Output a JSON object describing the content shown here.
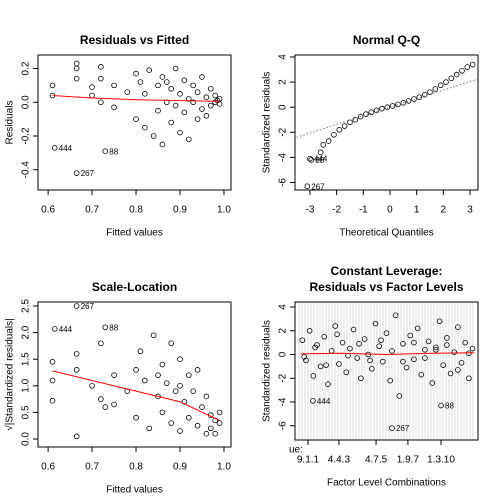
{
  "chart_data": [
    {
      "type": "scatter",
      "title": "Residuals vs Fitted",
      "x_label": "Fitted values",
      "y_label": "Residuals",
      "xlim": [
        0.577,
        1.016
      ],
      "ylim": [
        -0.52,
        0.28
      ],
      "xticks": [
        0.6,
        0.7,
        0.8,
        0.9,
        {
          "value": 1,
          "label": "1.0"
        }
      ],
      "yticks": [
        -0.4,
        -0.2,
        {
          "value": 0,
          "label": "0.0"
        },
        0.2
      ],
      "series": [
        {
          "style": "points",
          "color": "#000000",
          "x": [
            0.61,
            0.61,
            0.615,
            0.665,
            0.665,
            0.665,
            0.665,
            0.7,
            0.7,
            0.72,
            0.72,
            0.72,
            0.73,
            0.75,
            0.75,
            0.78,
            0.8,
            0.8,
            0.81,
            0.82,
            0.82,
            0.83,
            0.84,
            0.85,
            0.85,
            0.86,
            0.86,
            0.87,
            0.88,
            0.88,
            0.89,
            0.9,
            0.9,
            0.91,
            0.91,
            0.92,
            0.92,
            0.93,
            0.94,
            0.94,
            0.95,
            0.95,
            0.96,
            0.96,
            0.97,
            0.97,
            0.98,
            0.98,
            0.99,
            0.99,
            0.985,
            0.93,
            0.89,
            0.87
          ],
          "values": [
            0.1,
            0.04,
            -0.27,
            0.23,
            0.2,
            0.14,
            -0.42,
            0.09,
            0.04,
            0.21,
            0.14,
            0.0,
            -0.29,
            0.1,
            -0.03,
            0.06,
            0.17,
            -0.1,
            0.12,
            0.05,
            -0.15,
            0.19,
            -0.2,
            0.1,
            -0.05,
            0.15,
            -0.25,
            0.0,
            0.08,
            -0.12,
            0.2,
            0.05,
            -0.18,
            0.13,
            -0.06,
            0.02,
            -0.22,
            0.1,
            -0.1,
            0.06,
            0.15,
            -0.04,
            0.03,
            -0.08,
            0.08,
            -0.02,
            0.04,
            0.0,
            0.02,
            -0.01,
            0.01,
            0.0,
            -0.02,
            0.12
          ]
        },
        {
          "style": "line",
          "color": "#ff0000",
          "x": [
            0.61,
            0.7,
            0.8,
            0.9,
            0.99
          ],
          "values": [
            0.04,
            0.025,
            0.015,
            0.01,
            0.005
          ]
        }
      ],
      "annotations": [
        {
          "text": "444",
          "x": 0.615,
          "y": -0.27
        },
        {
          "text": "88",
          "x": 0.73,
          "y": -0.29
        },
        {
          "text": "267",
          "x": 0.665,
          "y": -0.42
        }
      ]
    },
    {
      "type": "scatter",
      "title": "Normal Q-Q",
      "x_label": "Theoretical Quantiles",
      "y_label": "Standardized residuals",
      "xlim": [
        -3.56,
        3.3
      ],
      "ylim": [
        -6.6,
        4.16
      ],
      "xticks": [
        -3,
        -2,
        -1,
        0,
        1,
        2,
        3
      ],
      "yticks": [
        -6,
        -4,
        -2,
        0,
        2,
        4
      ],
      "series": [
        {
          "style": "points",
          "color": "#000000",
          "x": [
            -3.1,
            -3.0,
            -2.95,
            -2.6,
            -2.5,
            -2.3,
            -2.1,
            -1.9,
            -1.7,
            -1.5,
            -1.3,
            -1.1,
            -0.9,
            -0.7,
            -0.5,
            -0.3,
            -0.1,
            0.1,
            0.3,
            0.5,
            0.7,
            0.9,
            1.1,
            1.3,
            1.5,
            1.7,
            1.9,
            2.1,
            2.3,
            2.5,
            2.7,
            2.9,
            3.1
          ],
          "values": [
            -6.3,
            -4.1,
            -4.2,
            -3.6,
            -3.0,
            -2.7,
            -2.2,
            -1.8,
            -1.5,
            -1.2,
            -1.0,
            -0.75,
            -0.55,
            -0.4,
            -0.25,
            -0.12,
            0.0,
            0.1,
            0.22,
            0.35,
            0.5,
            0.65,
            0.8,
            1.0,
            1.2,
            1.45,
            1.75,
            2.0,
            2.3,
            2.6,
            2.9,
            3.2,
            3.4
          ]
        },
        {
          "style": "dotted",
          "color": "#777777",
          "x": [
            -3.5,
            3.3
          ],
          "values": [
            -2.4,
            2.25
          ]
        }
      ],
      "annotations": [
        {
          "text": "444",
          "x": -3.0,
          "y": -4.1
        },
        {
          "text": "88",
          "x": -2.95,
          "y": -4.2
        },
        {
          "text": "267",
          "x": -3.1,
          "y": -6.3
        }
      ]
    },
    {
      "type": "scatter",
      "title": "Scale-Location",
      "x_label": "Fitted values",
      "y_label": "√|Standardized residuals|",
      "xlim": [
        0.577,
        1.016
      ],
      "ylim": [
        -0.15,
        2.575
      ],
      "xticks": [
        0.6,
        0.7,
        0.8,
        0.9,
        {
          "value": 1,
          "label": "1.0"
        }
      ],
      "yticks": [
        {
          "value": 0,
          "label": "0.0"
        },
        0.5,
        {
          "value": 1,
          "label": "1.0"
        },
        1.5,
        {
          "value": 2,
          "label": "2.0"
        },
        2.5
      ],
      "series": [
        {
          "style": "points",
          "color": "#000000",
          "x": [
            0.615,
            0.73,
            0.665,
            0.61,
            0.61,
            0.61,
            0.665,
            0.665,
            0.665,
            0.7,
            0.72,
            0.72,
            0.73,
            0.75,
            0.75,
            0.78,
            0.8,
            0.8,
            0.81,
            0.82,
            0.83,
            0.84,
            0.85,
            0.86,
            0.86,
            0.87,
            0.88,
            0.88,
            0.89,
            0.9,
            0.9,
            0.91,
            0.92,
            0.92,
            0.93,
            0.94,
            0.94,
            0.95,
            0.96,
            0.96,
            0.97,
            0.97,
            0.98,
            0.98,
            0.99,
            0.99,
            0.9,
            0.85
          ],
          "values": [
            2.07,
            2.1,
            2.5,
            1.45,
            1.1,
            0.72,
            0.05,
            1.3,
            1.6,
            1.0,
            1.8,
            0.75,
            0.6,
            1.2,
            0.65,
            0.9,
            1.3,
            0.4,
            1.65,
            1.1,
            0.2,
            1.95,
            0.8,
            1.4,
            0.5,
            1.05,
            1.8,
            0.3,
            0.9,
            1.5,
            0.15,
            0.7,
            1.2,
            0.4,
            0.9,
            0.25,
            1.3,
            0.6,
            0.1,
            0.8,
            0.45,
            0.2,
            0.35,
            0.1,
            0.3,
            0.5,
            1.0,
            1.2
          ]
        },
        {
          "style": "line",
          "color": "#ff0000",
          "x": [
            0.61,
            0.7,
            0.8,
            0.9,
            0.99
          ],
          "values": [
            1.28,
            1.1,
            0.9,
            0.7,
            0.35
          ]
        }
      ],
      "annotations": [
        {
          "text": "444",
          "x": 0.615,
          "y": 2.07
        },
        {
          "text": "88",
          "x": 0.73,
          "y": 2.1
        },
        {
          "text": "267",
          "x": 0.665,
          "y": 2.5
        }
      ]
    },
    {
      "type": "scatter",
      "title": [
        "Constant Leverage:",
        "Residuals vs Factor Levels"
      ],
      "x_label": "Factor Level Combinations",
      "y_label": "Standardized residuals",
      "axis_note": "ue:",
      "xlim": [
        0,
        100
      ],
      "ylim": [
        -7.2,
        4.42
      ],
      "xticks": [
        {
          "value": 7.1,
          "label": "9.1.1"
        },
        {
          "value": 24,
          "label": "4.4.3"
        },
        {
          "value": 44.3,
          "label": "4.7.5"
        },
        {
          "value": 61.7,
          "label": "1.9.7"
        },
        {
          "value": 79.8,
          "label": "1.3.10"
        }
      ],
      "yticks": [
        -6,
        -4,
        -2,
        0,
        2,
        4
      ],
      "series": [
        {
          "style": "points",
          "color": "#000000",
          "x": [
            9.8,
            53,
            79.8,
            4,
            6,
            8,
            10,
            12,
            14,
            16,
            18,
            20,
            22,
            24,
            26,
            28,
            30,
            32,
            34,
            36,
            38,
            40,
            42,
            44,
            46,
            48,
            50,
            52,
            55,
            57,
            59,
            61,
            63,
            65,
            67,
            69,
            71,
            73,
            75,
            77,
            79,
            81,
            83,
            85,
            87,
            89,
            91,
            93,
            95,
            97,
            5,
            11,
            17,
            23,
            29,
            35,
            41,
            47,
            53,
            59,
            65,
            71,
            77,
            83,
            89,
            95
          ],
          "values": [
            -3.9,
            -6.2,
            -4.3,
            1.2,
            -0.5,
            2.0,
            -1.8,
            0.8,
            -1.0,
            1.5,
            -2.5,
            0.3,
            2.4,
            -0.8,
            1.0,
            -1.5,
            0.5,
            2.1,
            -0.3,
            -2.0,
            1.3,
            0.0,
            -1.2,
            2.6,
            0.7,
            -0.6,
            1.8,
            -2.2,
            3.3,
            -3.5,
            0.9,
            -1.1,
            1.6,
            -0.4,
            2.2,
            -1.7,
            0.4,
            1.1,
            -2.4,
            0.6,
            2.8,
            -0.9,
            1.4,
            -1.6,
            0.2,
            2.3,
            -0.7,
            1.0,
            -2.0,
            0.5,
            -0.2,
            0.6,
            -0.9,
            1.7,
            -0.1,
            0.9,
            -0.5,
            1.2,
            0.3,
            -0.6,
            1.0,
            -0.3,
            0.4,
            0.8,
            -1.3,
            0.1
          ]
        },
        {
          "style": "line",
          "color": "#ff0000",
          "x": [
            3,
            25,
            50,
            75,
            98
          ],
          "values": [
            0.05,
            0.1,
            0.0,
            0.1,
            0.15
          ]
        }
      ],
      "annotations": [
        {
          "text": "444",
          "x": 9.8,
          "y": -3.9
        },
        {
          "text": "267",
          "x": 53,
          "y": -6.2
        },
        {
          "text": "88",
          "x": 79.8,
          "y": -4.3
        }
      ]
    }
  ]
}
